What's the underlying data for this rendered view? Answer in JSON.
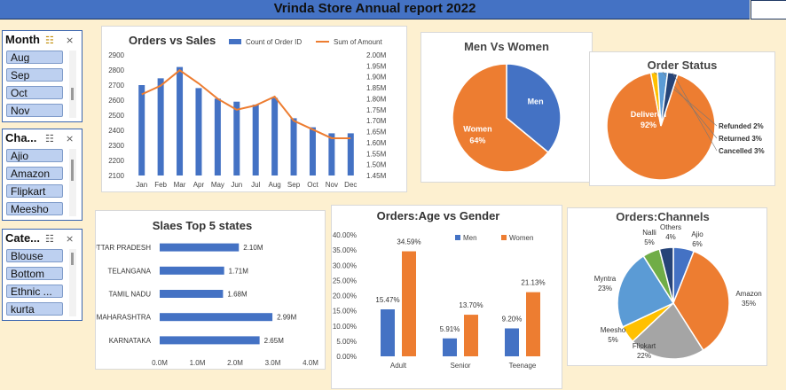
{
  "header": {
    "title": "Vrinda Store Annual report 2022"
  },
  "slicers": [
    {
      "title": "Month",
      "items": [
        "Aug",
        "Sep",
        "Oct",
        "Nov"
      ]
    },
    {
      "title": "Cha...",
      "items": [
        "Ajio",
        "Amazon",
        "Flipkart",
        "Meesho"
      ]
    },
    {
      "title": "Cate...",
      "items": [
        "Blouse",
        "Bottom",
        "Ethnic ...",
        "kurta"
      ]
    }
  ],
  "chart_data": [
    {
      "type": "bar",
      "title": "Orders vs Sales",
      "categories": [
        "Jan",
        "Feb",
        "Mar",
        "Apr",
        "May",
        "Jun",
        "Jul",
        "Aug",
        "Sep",
        "Oct",
        "Nov",
        "Dec"
      ],
      "series": [
        {
          "name": "Count of Order ID",
          "type": "bar",
          "axis": "left",
          "values": [
            2700,
            2745,
            2820,
            2680,
            2610,
            2590,
            2570,
            2615,
            2480,
            2420,
            2380,
            2380
          ]
        },
        {
          "name": "Sum of Amount",
          "type": "line",
          "axis": "right",
          "values": [
            1.82,
            1.86,
            1.93,
            1.87,
            1.8,
            1.75,
            1.77,
            1.81,
            1.7,
            1.66,
            1.62,
            1.62
          ]
        }
      ],
      "ylim": [
        2100,
        2900
      ],
      "yticks": [
        "2100",
        "2200",
        "2300",
        "2400",
        "2500",
        "2600",
        "2700",
        "2800",
        "2900"
      ],
      "y2lim": [
        1.45,
        2.0
      ],
      "y2ticks": [
        "1.45M",
        "1.50M",
        "1.55M",
        "1.60M",
        "1.65M",
        "1.70M",
        "1.75M",
        "1.80M",
        "1.85M",
        "1.90M",
        "1.95M",
        "2.00M"
      ],
      "bar_color": "#4472c4",
      "line_color": "#ed7d31"
    },
    {
      "type": "pie",
      "title": "Men Vs Women",
      "slices": [
        {
          "label": "Men",
          "value": 36,
          "display": "",
          "color": "#4472c4"
        },
        {
          "label": "Women",
          "value": 64,
          "display": "64%",
          "color": "#ed7d31"
        }
      ]
    },
    {
      "type": "pie",
      "title": "Order Status",
      "slices": [
        {
          "label": "Delivered",
          "value": 92,
          "display": "92%",
          "color": "#ed7d31"
        },
        {
          "label": "Refunded",
          "value": 2,
          "display": "2%",
          "color": "#ffc000"
        },
        {
          "label": "Returned",
          "value": 3,
          "display": "3%",
          "color": "#5b9bd5"
        },
        {
          "label": "Cancelled",
          "value": 3,
          "display": "3%",
          "color": "#264478"
        }
      ]
    },
    {
      "type": "bar",
      "orientation": "horizontal",
      "title": "Slaes Top 5 states",
      "categories": [
        "UTTAR PRADESH",
        "TELANGANA",
        "TAMIL NADU",
        "MAHARASHTRA",
        "KARNATAKA"
      ],
      "values": [
        2.1,
        1.71,
        1.68,
        2.99,
        2.65
      ],
      "labels": [
        "2.10M",
        "1.71M",
        "1.68M",
        "2.99M",
        "2.65M"
      ],
      "xlim": [
        0,
        4.0
      ],
      "xticks": [
        "0.0M",
        "1.0M",
        "2.0M",
        "3.0M",
        "4.0M"
      ],
      "color": "#4472c4"
    },
    {
      "type": "bar",
      "title": "Orders:Age vs Gender",
      "categories": [
        "Adult",
        "Senior",
        "Teenage"
      ],
      "series": [
        {
          "name": "Men",
          "values": [
            15.47,
            5.91,
            9.2
          ],
          "labels": [
            "15.47%",
            "5.91%",
            "9.20%"
          ],
          "color": "#4472c4"
        },
        {
          "name": "Women",
          "values": [
            34.59,
            13.7,
            21.13
          ],
          "labels": [
            "34.59%",
            "13.70%",
            "21.13%"
          ],
          "color": "#ed7d31"
        }
      ],
      "ylim": [
        0,
        40
      ],
      "yticks": [
        "0.00%",
        "5.00%",
        "10.00%",
        "15.00%",
        "20.00%",
        "25.00%",
        "30.00%",
        "35.00%",
        "40.00%"
      ]
    },
    {
      "type": "pie",
      "title": "Orders:Channels",
      "slices": [
        {
          "label": "Ajio",
          "value": 6,
          "display": "6%",
          "color": "#4472c4"
        },
        {
          "label": "Amazon",
          "value": 35,
          "display": "35%",
          "color": "#ed7d31"
        },
        {
          "label": "Flipkart",
          "value": 22,
          "display": "22%",
          "color": "#a5a5a5"
        },
        {
          "label": "Meesho",
          "value": 5,
          "display": "5%",
          "color": "#ffc000"
        },
        {
          "label": "Myntra",
          "value": 23,
          "display": "23%",
          "color": "#5b9bd5"
        },
        {
          "label": "Nalli",
          "value": 5,
          "display": "5%",
          "color": "#70ad47"
        },
        {
          "label": "Others",
          "value": 4,
          "display": "4%",
          "color": "#264478"
        }
      ]
    }
  ]
}
